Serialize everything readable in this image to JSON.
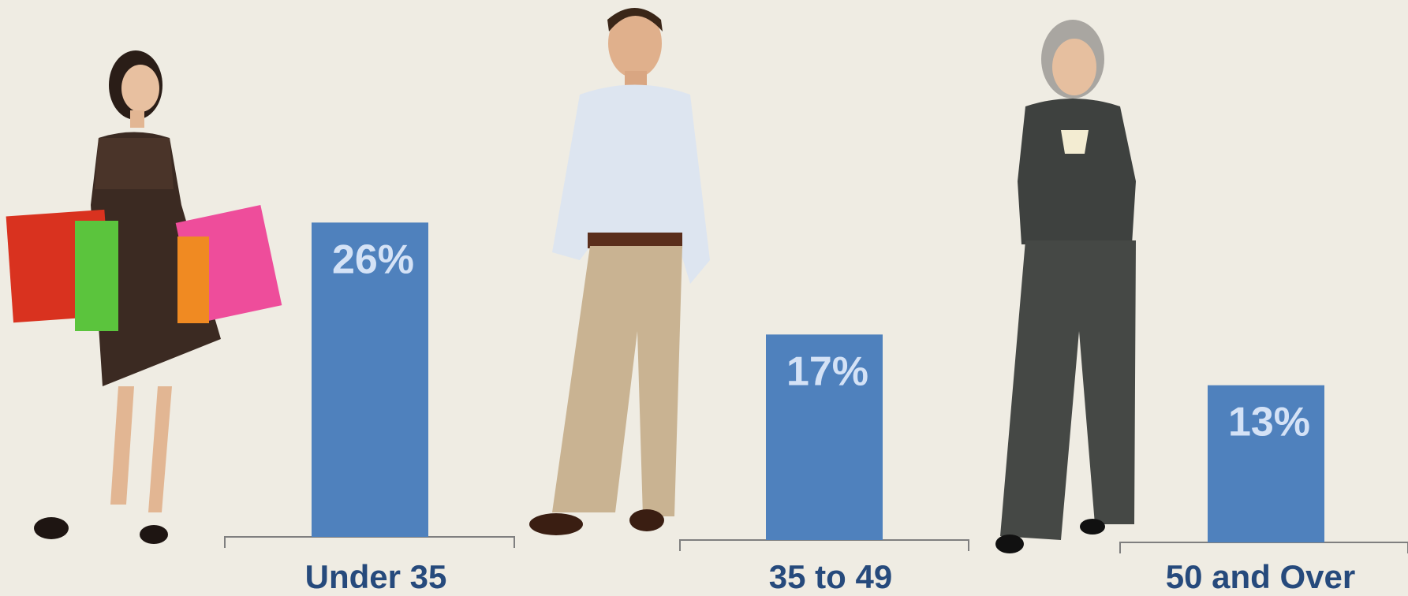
{
  "chart_data": {
    "type": "bar",
    "categories": [
      "Under 35",
      "35 to 49",
      "50 and Over"
    ],
    "values": [
      26,
      17,
      13
    ],
    "value_labels": [
      "26%",
      "17%",
      "13%"
    ],
    "color": "#4f81bd"
  }
}
